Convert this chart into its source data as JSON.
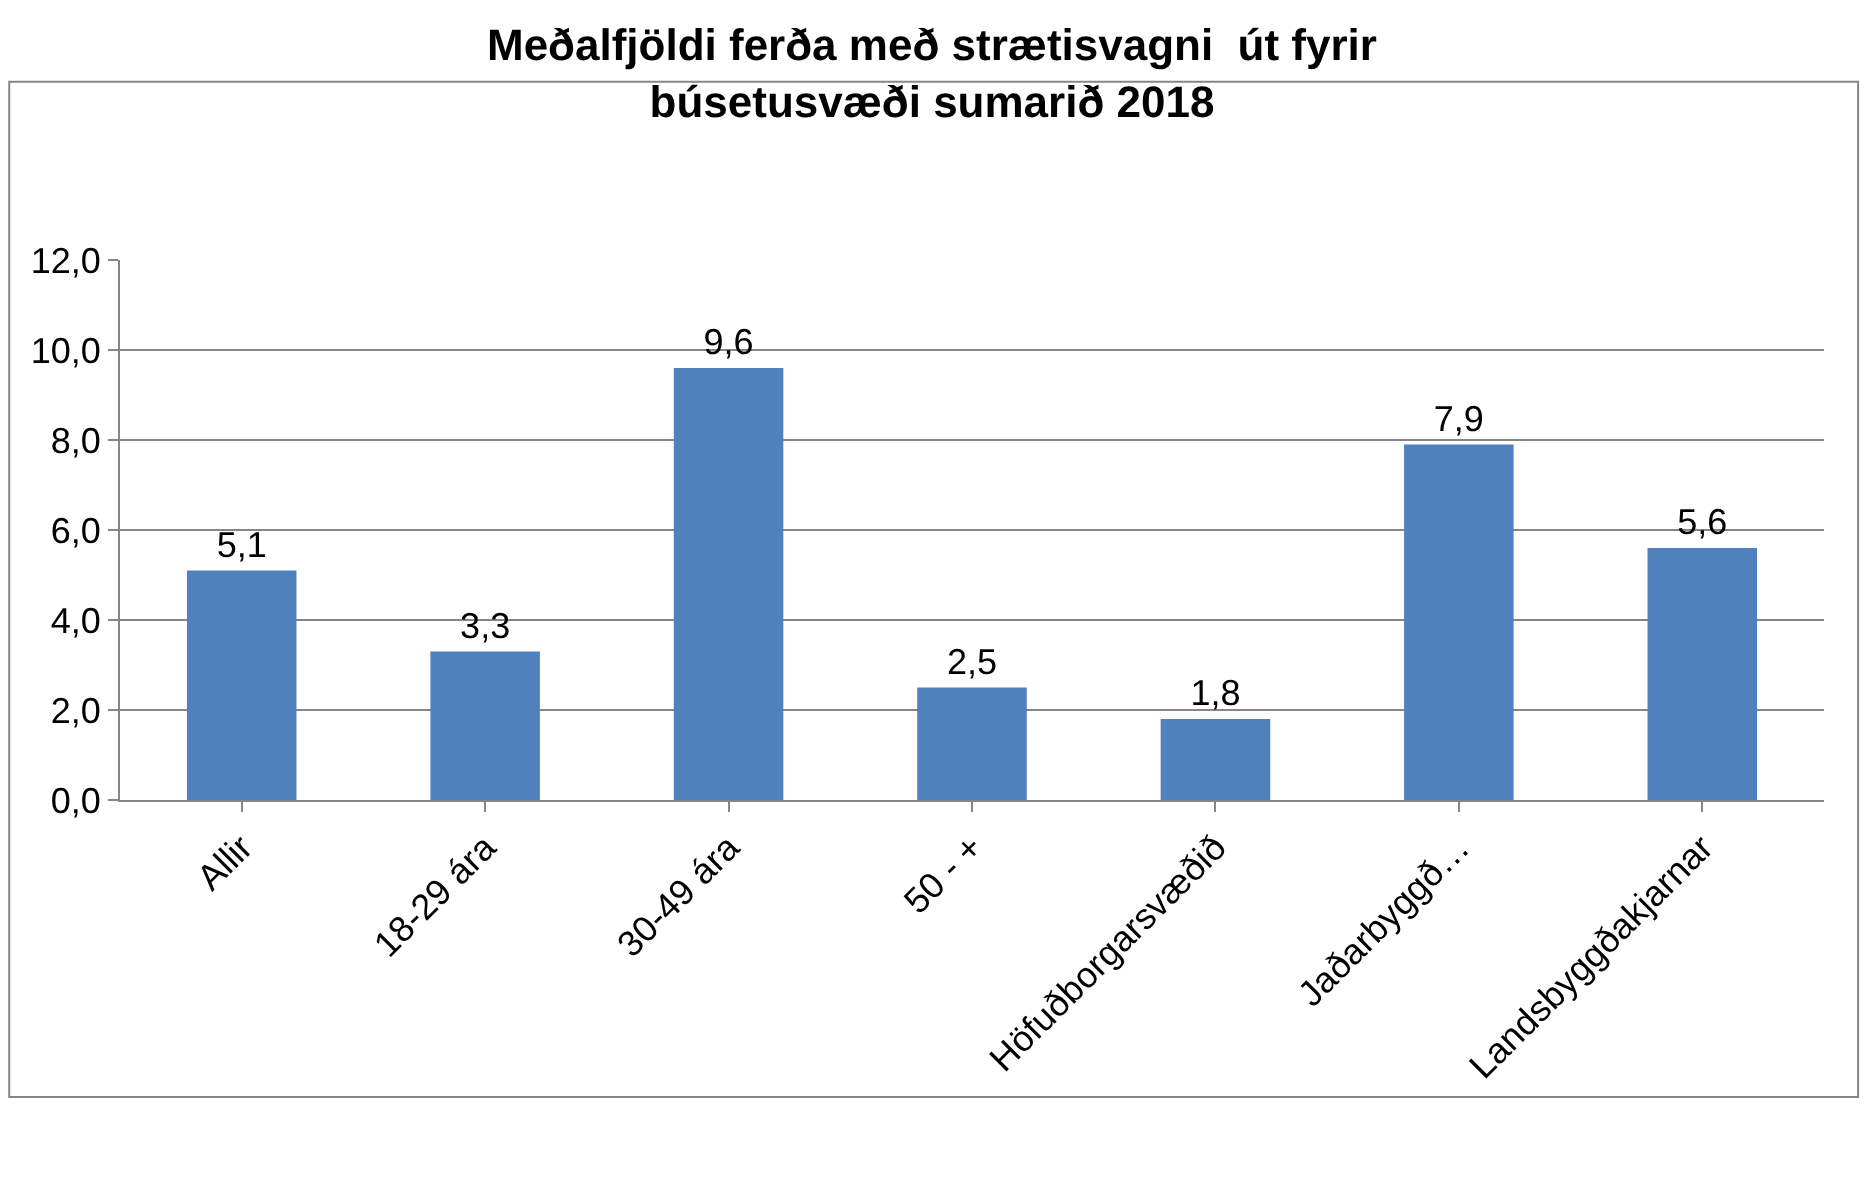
{
  "chart_data": {
    "type": "bar",
    "title": "Meðalfjöldi ferða með strætisvagni  út fyrir\nbúsetusvæði sumarið 2018",
    "categories": [
      "Allir",
      "18-29 ára",
      "30-49 ára",
      "50 - +",
      "Höfuðborgarsvæðið",
      "Jaðarbyggð…",
      "Landsbyggðakjarnar"
    ],
    "values": [
      5.1,
      3.3,
      9.6,
      2.5,
      1.8,
      7.9,
      5.6
    ],
    "value_labels": [
      "5,1",
      "3,3",
      "9,6",
      "2,5",
      "1,8",
      "7,9",
      "5,6"
    ],
    "color": "#4f81bd",
    "ylim": [
      0,
      12
    ],
    "yticks": [
      {
        "value": 0,
        "label": "0,0"
      },
      {
        "value": 2,
        "label": "2,0"
      },
      {
        "value": 4,
        "label": "4,0"
      },
      {
        "value": 6,
        "label": "6,0"
      },
      {
        "value": 8,
        "label": "8,0"
      },
      {
        "value": 10,
        "label": "10,0"
      },
      {
        "value": 12,
        "label": "12,0"
      }
    ],
    "grid": "y",
    "legend": false
  }
}
